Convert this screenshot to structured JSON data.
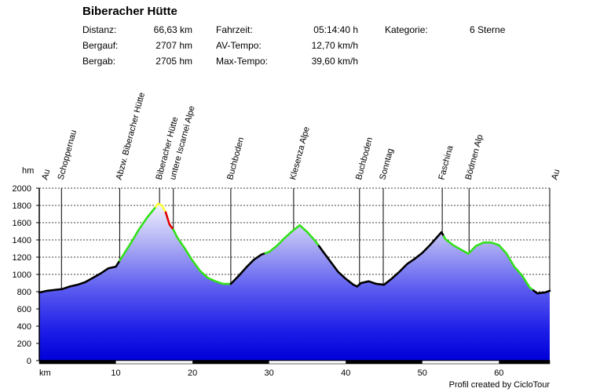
{
  "title": "Biberacher Hütte",
  "stats": [
    {
      "label": "Distanz:",
      "value": "66,63 km"
    },
    {
      "label": "Bergauf:",
      "value": "2707 hm"
    },
    {
      "label": "Bergab:",
      "value": "2705 hm"
    },
    {
      "label": "Fahrzeit:",
      "value": "05:14:40 h"
    },
    {
      "label": "AV-Tempo:",
      "value": "12,70 km/h"
    },
    {
      "label": "Max-Tempo:",
      "value": "39,60 km/h"
    },
    {
      "label": "Kategorie:",
      "value": "6 Sterne"
    }
  ],
  "credit": "Profil created by CicloTour",
  "chart_data": {
    "type": "area",
    "title": "",
    "xlabel": "km",
    "ylabel": "hm",
    "xlim": [
      0,
      66.63
    ],
    "ylim": [
      0,
      2000
    ],
    "x_ticks": [
      0,
      10,
      20,
      30,
      40,
      50,
      60
    ],
    "y_ticks": [
      0,
      200,
      400,
      600,
      800,
      1000,
      1200,
      1400,
      1600,
      1800,
      2000
    ],
    "grid": true,
    "profile": {
      "x": [
        0,
        1,
        2,
        3,
        4,
        5,
        6,
        7,
        8,
        9,
        10,
        11,
        12,
        13,
        14,
        15,
        15.5,
        16,
        16.5,
        17,
        17.5,
        18,
        19,
        20,
        21,
        22,
        23,
        24,
        25,
        26,
        27,
        28,
        29,
        30,
        31,
        32,
        33,
        34,
        35,
        36,
        37,
        38,
        39,
        40,
        41,
        41.5,
        42,
        43,
        44,
        45,
        46,
        47,
        48,
        49,
        50,
        51,
        52,
        52.5,
        53,
        54,
        55,
        56,
        57,
        58,
        59,
        60,
        61,
        62,
        63,
        64,
        65,
        66,
        66.63
      ],
      "y": [
        790,
        810,
        820,
        830,
        860,
        880,
        910,
        960,
        1010,
        1070,
        1090,
        1230,
        1370,
        1520,
        1650,
        1760,
        1820,
        1800,
        1720,
        1580,
        1520,
        1430,
        1300,
        1160,
        1040,
        960,
        920,
        890,
        890,
        980,
        1080,
        1170,
        1230,
        1260,
        1330,
        1420,
        1500,
        1570,
        1490,
        1390,
        1270,
        1150,
        1030,
        950,
        880,
        860,
        900,
        920,
        890,
        880,
        950,
        1030,
        1120,
        1180,
        1250,
        1340,
        1440,
        1490,
        1410,
        1340,
        1290,
        1240,
        1330,
        1370,
        1370,
        1340,
        1240,
        1090,
        990,
        850,
        780,
        790,
        810
      ]
    },
    "segments": [
      {
        "from_km": 0,
        "to_km": 10.5,
        "color": "#000000"
      },
      {
        "from_km": 10.5,
        "to_km": 15.2,
        "color": "#33e01a"
      },
      {
        "from_km": 15.2,
        "to_km": 16.5,
        "color": "#ffff33"
      },
      {
        "from_km": 16.5,
        "to_km": 17.5,
        "color": "#e00000"
      },
      {
        "from_km": 17.5,
        "to_km": 25,
        "color": "#33e01a"
      },
      {
        "from_km": 25,
        "to_km": 29.5,
        "color": "#000000"
      },
      {
        "from_km": 29.5,
        "to_km": 36.5,
        "color": "#33e01a"
      },
      {
        "from_km": 36.5,
        "to_km": 52.8,
        "color": "#000000"
      },
      {
        "from_km": 52.8,
        "to_km": 64.5,
        "color": "#33e01a"
      },
      {
        "from_km": 64.5,
        "to_km": 66.63,
        "color": "#000000"
      }
    ],
    "waypoints": [
      {
        "name": "Au",
        "km": 0
      },
      {
        "name": "Schoppernau",
        "km": 2.9
      },
      {
        "name": "Abzw. Biberacher Hütte",
        "km": 10.5
      },
      {
        "name": "Biberacher Hütte",
        "km": 15.7
      },
      {
        "name": "untere Iscarnei Alpe",
        "km": 17.5
      },
      {
        "name": "Buchboden",
        "km": 25
      },
      {
        "name": "Klesenza Alpe",
        "km": 33.2
      },
      {
        "name": "Buchboden",
        "km": 41.8
      },
      {
        "name": "Sonntag",
        "km": 44.9
      },
      {
        "name": "Faschina",
        "km": 52.6
      },
      {
        "name": "Bödmen Alp",
        "km": 56.1
      },
      {
        "name": "Au",
        "km": 66.63
      }
    ],
    "ticks_printed": [
      {
        "value": 0,
        "label": "0"
      },
      {
        "value": 200,
        "label": "200"
      },
      {
        "value": 400,
        "label": "400"
      },
      {
        "value": 600,
        "label": "600"
      },
      {
        "value": 800,
        "label": "800"
      },
      {
        "value": 1000,
        "label": "1000"
      },
      {
        "value": 1200,
        "label": "1200"
      },
      {
        "value": 1400,
        "label": "1400"
      },
      {
        "value": 1600,
        "label": "1600"
      },
      {
        "value": 1800,
        "label": "1800"
      },
      {
        "value": 2000,
        "label": "2000"
      }
    ],
    "xticks_printed": [
      {
        "value": 10,
        "label": "10"
      },
      {
        "value": 20,
        "label": "20"
      },
      {
        "value": 30,
        "label": "30"
      },
      {
        "value": 40,
        "label": "40"
      },
      {
        "value": 50,
        "label": "50"
      },
      {
        "value": 60,
        "label": "60"
      }
    ]
  }
}
